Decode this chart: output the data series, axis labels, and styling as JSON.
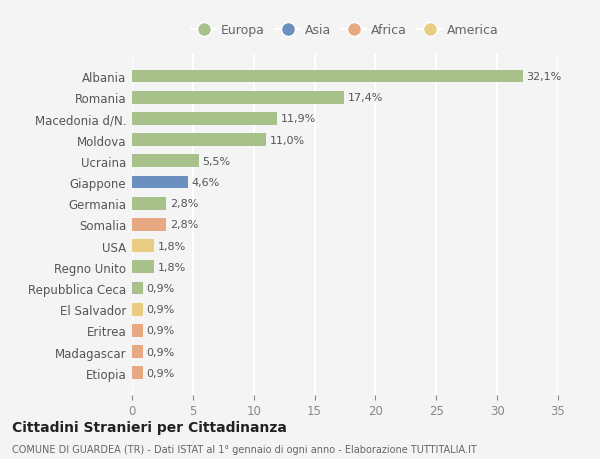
{
  "countries": [
    "Albania",
    "Romania",
    "Macedonia d/N.",
    "Moldova",
    "Ucraina",
    "Giappone",
    "Germania",
    "Somalia",
    "USA",
    "Regno Unito",
    "Repubblica Ceca",
    "El Salvador",
    "Eritrea",
    "Madagascar",
    "Etiopia"
  ],
  "values": [
    32.1,
    17.4,
    11.9,
    11.0,
    5.5,
    4.6,
    2.8,
    2.8,
    1.8,
    1.8,
    0.9,
    0.9,
    0.9,
    0.9,
    0.9
  ],
  "labels": [
    "32,1%",
    "17,4%",
    "11,9%",
    "11,0%",
    "5,5%",
    "4,6%",
    "2,8%",
    "2,8%",
    "1,8%",
    "1,8%",
    "0,9%",
    "0,9%",
    "0,9%",
    "0,9%",
    "0,9%"
  ],
  "continents": [
    "Europa",
    "Europa",
    "Europa",
    "Europa",
    "Europa",
    "Asia",
    "Europa",
    "Africa",
    "America",
    "Europa",
    "Europa",
    "America",
    "Africa",
    "Africa",
    "Africa"
  ],
  "colors": {
    "Europa": "#a8c08a",
    "Asia": "#6b8fbe",
    "Africa": "#e8a882",
    "America": "#e8cc82"
  },
  "xlim": [
    0,
    35
  ],
  "xticks": [
    0,
    5,
    10,
    15,
    20,
    25,
    30,
    35
  ],
  "background_color": "#f4f4f4",
  "grid_color": "#ffffff",
  "title": "Cittadini Stranieri per Cittadinanza",
  "subtitle": "COMUNE DI GUARDEA (TR) - Dati ISTAT al 1° gennaio di ogni anno - Elaborazione TUTTITALIA.IT",
  "legend_entries": [
    "Europa",
    "Asia",
    "Africa",
    "America"
  ]
}
